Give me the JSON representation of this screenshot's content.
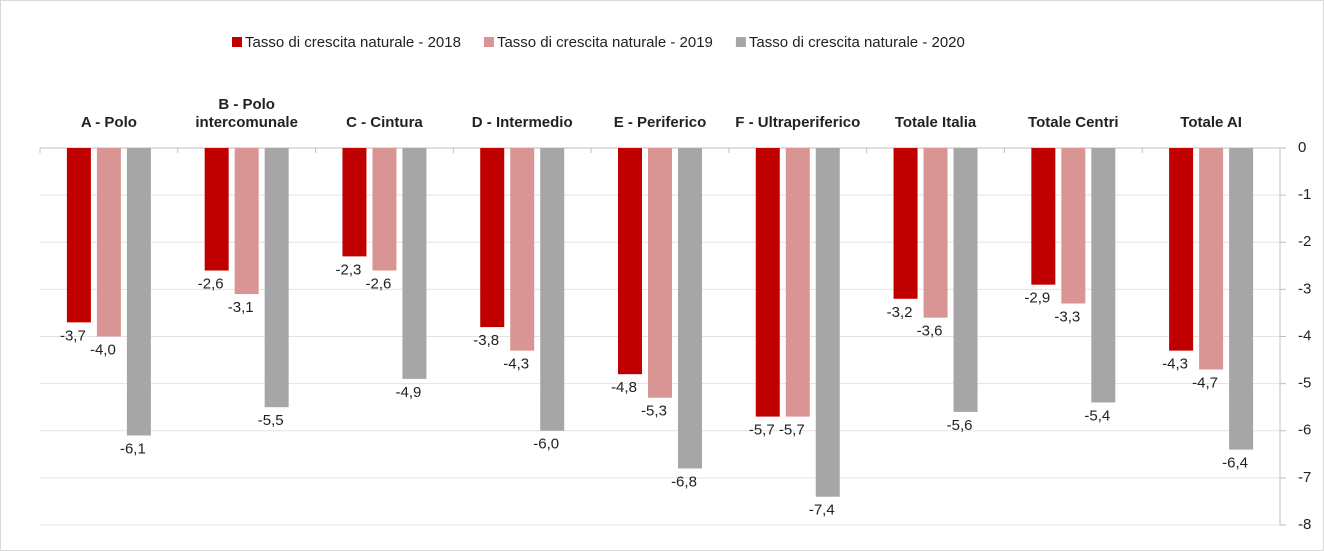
{
  "chart_data": {
    "type": "bar",
    "categories": [
      "A - Polo",
      "B - Polo intercomunale",
      "C - Cintura",
      "D - Intermedio",
      "E - Periferico",
      "F - Ultraperiferico",
      "Totale Italia",
      "Totale Centri",
      "Totale AI"
    ],
    "series": [
      {
        "name": "Tasso di crescita naturale - 2018",
        "color": "#c00000",
        "values": [
          -3.7,
          -2.6,
          -2.3,
          -3.8,
          -4.8,
          -5.7,
          -3.2,
          -2.9,
          -4.3
        ],
        "value_labels": [
          "-3,7",
          "-2,6",
          "-2,3",
          "-3,8",
          "-4,8",
          "-5,7",
          "-3,2",
          "-2,9",
          "-4,3"
        ]
      },
      {
        "name": "Tasso di crescita naturale - 2019",
        "color": "#d99594",
        "values": [
          -4.0,
          -3.1,
          -2.6,
          -4.3,
          -5.3,
          -5.7,
          -3.6,
          -3.3,
          -4.7
        ],
        "value_labels": [
          "-4,0",
          "-3,1",
          "-2,6",
          "-4,3",
          "-5,3",
          "-5,7",
          "-3,6",
          "-3,3",
          "-4,7"
        ]
      },
      {
        "name": "Tasso di crescita naturale - 2020",
        "color": "#a6a6a6",
        "values": [
          -6.1,
          -5.5,
          -4.9,
          -6.0,
          -6.8,
          -7.4,
          -5.6,
          -5.4,
          -6.4
        ],
        "value_labels": [
          "-6,1",
          "-5,5",
          "-4,9",
          "-6,0",
          "-6,8",
          "-7,4",
          "-5,6",
          "-5,4",
          "-6,4"
        ]
      }
    ],
    "ylim": [
      -8,
      0
    ],
    "yticks": [
      0,
      -1,
      -2,
      -3,
      -4,
      -5,
      -6,
      -7,
      -8
    ],
    "grid": true,
    "legend": "top"
  }
}
